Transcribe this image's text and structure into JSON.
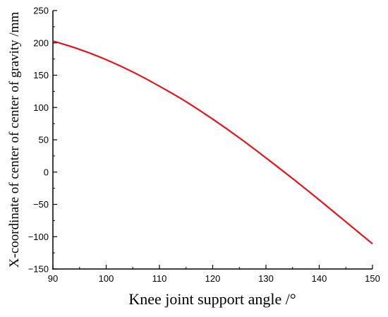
{
  "chart_data": {
    "type": "line",
    "title": "",
    "xlabel": "Knee joint support angle /°",
    "ylabel": "X-coordinate of center of center of gravity /mm",
    "xlim": [
      90,
      150
    ],
    "ylim": [
      -150,
      250
    ],
    "xticks": [
      "90",
      "100",
      "110",
      "120",
      "130",
      "140",
      "150"
    ],
    "yticks": [
      "250",
      "200",
      "150",
      "100",
      "50",
      "0",
      "−50",
      "−100",
      "−150"
    ],
    "grid": false,
    "legend": "none",
    "series": [
      {
        "color": "#e8141c",
        "x": [
          90,
          95,
          100,
          105,
          110,
          115,
          120,
          125,
          130,
          135,
          140,
          145,
          150
        ],
        "y": [
          203,
          190,
          174,
          155,
          133,
          109,
          82,
          53,
          22,
          -10,
          -43,
          -77,
          -111
        ]
      }
    ]
  }
}
